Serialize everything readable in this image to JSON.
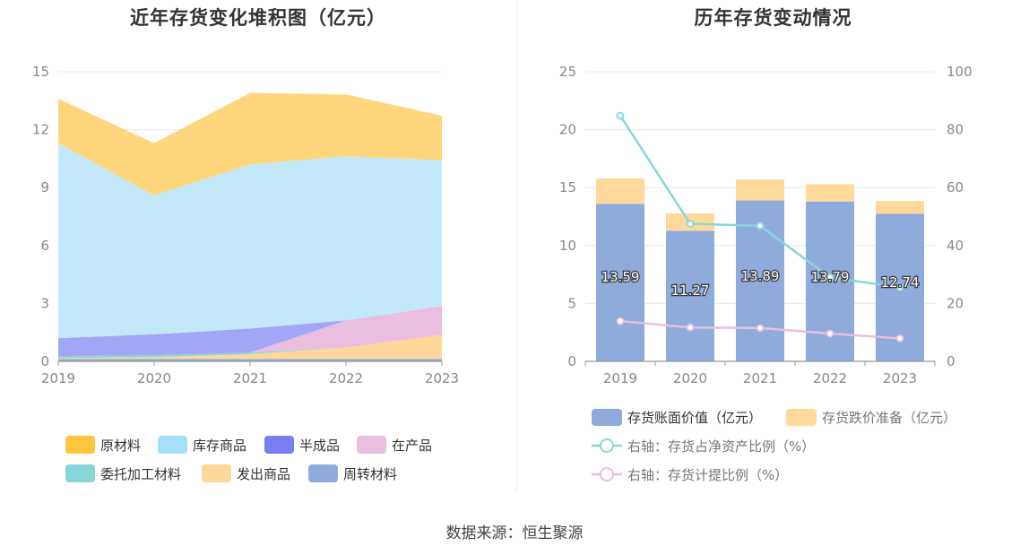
{
  "source": "数据来源：恒生聚源",
  "chart_data": [
    {
      "type": "area",
      "stacked": true,
      "title": "近年存货变化堆积图（亿元）",
      "x": [
        "2019",
        "2020",
        "2021",
        "2022",
        "2023"
      ],
      "ylim": [
        0,
        15
      ],
      "yticks": [
        0,
        3,
        6,
        9,
        12,
        15
      ],
      "grid": true,
      "legend_position": "bottom",
      "series": [
        {
          "name": "周转材料",
          "color": "#8eabdc",
          "values": [
            0.12,
            0.12,
            0.12,
            0.12,
            0.12
          ]
        },
        {
          "name": "发出商品",
          "color": "#ffd79a",
          "values": [
            0.05,
            0.1,
            0.25,
            0.6,
            1.25
          ]
        },
        {
          "name": "委托加工材料",
          "color": "#88d6d8",
          "values": [
            0.1,
            0.1,
            0.08,
            0.0,
            0.0
          ]
        },
        {
          "name": "在产品",
          "color": "#e9bede",
          "values": [
            0.0,
            0.0,
            0.0,
            1.4,
            1.5
          ]
        },
        {
          "name": "半成品",
          "color": "#a3a6f6",
          "values": [
            0.93,
            1.08,
            1.25,
            0.0,
            0.0
          ]
        },
        {
          "name": "库存商品",
          "color": "#c2e8fa",
          "values": [
            10.1,
            7.2,
            8.5,
            8.5,
            7.55
          ]
        },
        {
          "name": "原材料",
          "color": "#ffd67c",
          "values": [
            2.3,
            2.7,
            3.7,
            3.2,
            2.3
          ]
        }
      ],
      "legend_order": [
        "原材料",
        "库存商品",
        "半成品",
        "在产品",
        "委托加工材料",
        "发出商品",
        "周转材料"
      ],
      "legend_colors": {
        "原材料": "#ffc53d",
        "库存商品": "#a6dff8",
        "半成品": "#7a7ef2",
        "在产品": "#e9bede",
        "委托加工材料": "#88d6d8",
        "发出商品": "#ffd79a",
        "周转材料": "#8eabdc"
      }
    },
    {
      "type": "bar",
      "stacked": true,
      "title": "历年存货变动情况",
      "categories": [
        "2019",
        "2020",
        "2021",
        "2022",
        "2023"
      ],
      "ylim": [
        0,
        25
      ],
      "yticks": [
        0,
        5,
        10,
        15,
        20,
        25
      ],
      "y2lim": [
        0,
        100
      ],
      "y2ticks": [
        0,
        20,
        40,
        60,
        80,
        100
      ],
      "grid": true,
      "legend_position": "bottom",
      "series": [
        {
          "name": "存货账面价值（亿元）",
          "color": "#8eabdc",
          "axis": "left",
          "kind": "bar",
          "values": [
            13.59,
            11.27,
            13.89,
            13.79,
            12.74
          ],
          "labels": [
            "13.59",
            "11.27",
            "13.89",
            "13.79",
            "12.74"
          ]
        },
        {
          "name": "存货跌价准备（亿元）",
          "color": "#ffd99a",
          "axis": "left",
          "kind": "bar",
          "values": [
            2.2,
            1.5,
            1.8,
            1.5,
            1.1
          ]
        },
        {
          "name": "右轴：存货占净资产比例（%）",
          "color": "#88d6d8",
          "axis": "right",
          "kind": "line",
          "values": [
            84.8,
            47.5,
            46.8,
            29.0,
            25.5
          ]
        },
        {
          "name": "右轴：存货计提比例（%）",
          "color": "#e9bede",
          "axis": "right",
          "kind": "line",
          "values": [
            13.9,
            11.7,
            11.5,
            9.6,
            7.9
          ]
        }
      ]
    }
  ]
}
